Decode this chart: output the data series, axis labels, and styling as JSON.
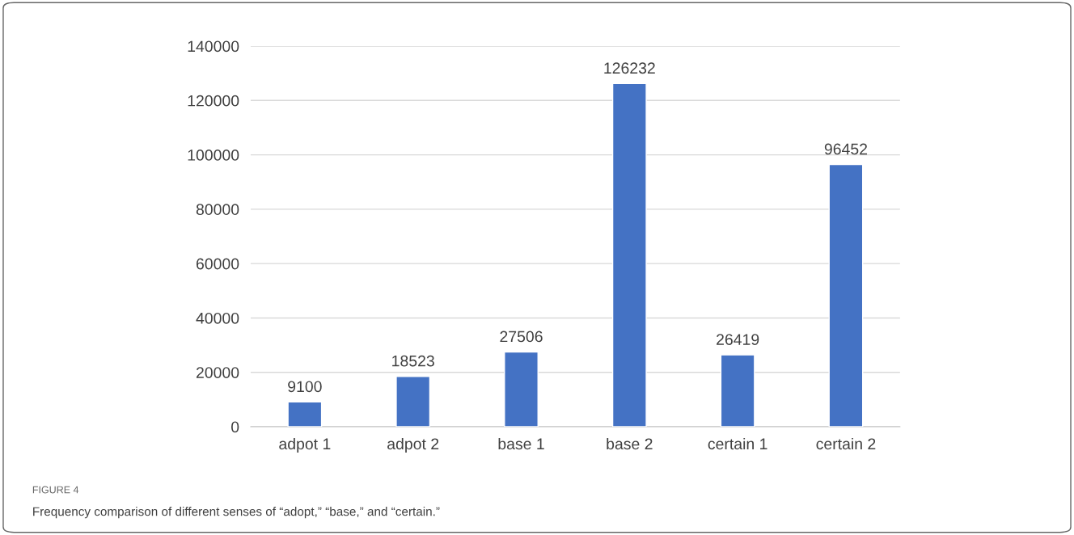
{
  "chart_data": {
    "type": "bar",
    "categories": [
      "adpot 1",
      "adpot 2",
      "base 1",
      "base 2",
      "certain 1",
      "certain 2"
    ],
    "values": [
      9100,
      18523,
      27506,
      126232,
      26419,
      96452
    ],
    "color": "#4472c4",
    "ylim": [
      0,
      140000
    ],
    "yticks": [
      0,
      20000,
      40000,
      60000,
      80000,
      100000,
      120000,
      140000
    ],
    "grid": "y",
    "data_labels": true,
    "legend": false,
    "annotations": [
      "FIGURE 4",
      "Frequency comparison of different senses of “adopt,” “base,” and “certain.”"
    ]
  }
}
